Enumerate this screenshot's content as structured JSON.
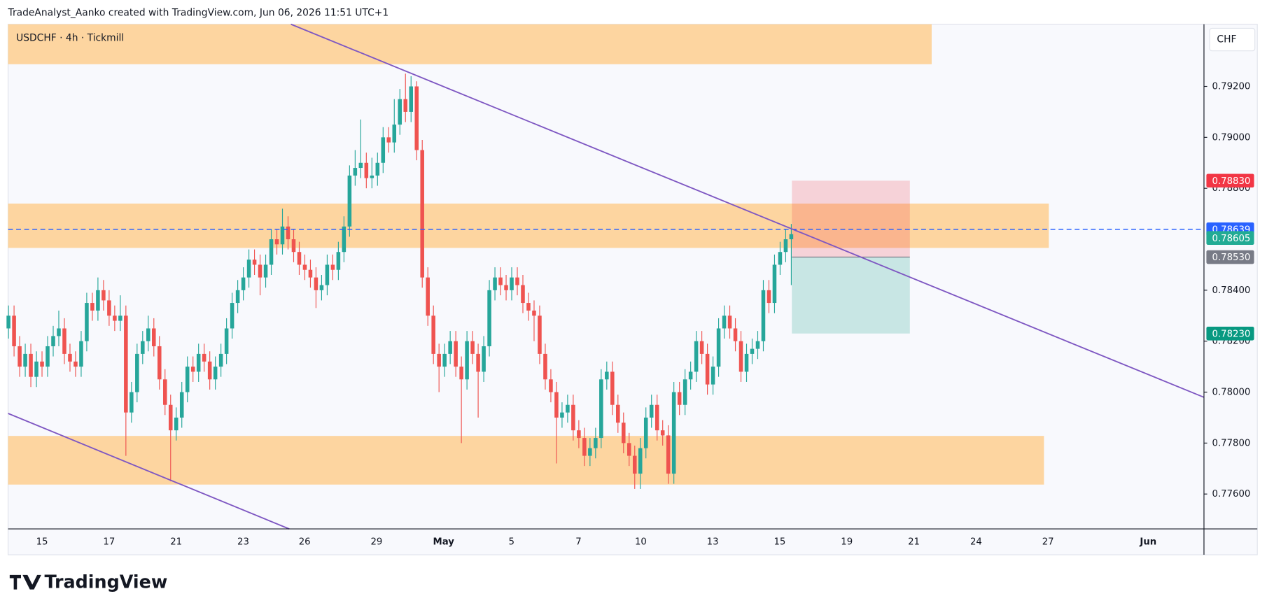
{
  "chart_data": {
    "type": "candlestick",
    "attribution": "TradeAnalyst_Aanko created with TradingView.com, Jun 06, 2026 11:51 UTC+1",
    "title": "USDCHF · 4h · Tickmill",
    "currency": "CHF",
    "brand": "TradingView",
    "up_color": "#26a69a",
    "down_color": "#ef5350",
    "ylim": [
      0.77463,
      0.79444
    ],
    "yticks": [
      {
        "value": 0.792,
        "label": "0.79200"
      },
      {
        "value": 0.79,
        "label": "0.79000"
      },
      {
        "value": 0.788,
        "label": "0.78800"
      },
      {
        "value": 0.784,
        "label": "0.78400"
      },
      {
        "value": 0.782,
        "label": "0.78200"
      },
      {
        "value": 0.78,
        "label": "0.78000"
      },
      {
        "value": 0.778,
        "label": "0.77800"
      },
      {
        "value": 0.776,
        "label": "0.77600"
      }
    ],
    "xtick_labels": [
      "15",
      "17",
      "21",
      "23",
      "26",
      "29",
      "May",
      "5",
      "7",
      "10",
      "13",
      "15",
      "19",
      "21",
      "24",
      "27",
      "Jun"
    ],
    "series": {
      "open": [
        0.7825,
        0.783,
        0.7818,
        0.781,
        0.7815,
        0.7806,
        0.7812,
        0.781,
        0.7818,
        0.7822,
        0.7825,
        0.7815,
        0.7812,
        0.781,
        0.782,
        0.7835,
        0.7832,
        0.784,
        0.7836,
        0.783,
        0.7828,
        0.783,
        0.7792,
        0.78,
        0.7815,
        0.782,
        0.7825,
        0.7818,
        0.7805,
        0.7795,
        0.7785,
        0.779,
        0.78,
        0.781,
        0.7808,
        0.7815,
        0.7812,
        0.7805,
        0.781,
        0.7815,
        0.7825,
        0.7835,
        0.784,
        0.7845,
        0.7852,
        0.785,
        0.7845,
        0.785,
        0.786,
        0.7858,
        0.7865,
        0.786,
        0.7855,
        0.785,
        0.7848,
        0.7845,
        0.784,
        0.7842,
        0.785,
        0.7848,
        0.7855,
        0.7865,
        0.7885,
        0.7888,
        0.789,
        0.7884,
        0.7885,
        0.789,
        0.79,
        0.7898,
        0.7905,
        0.7915,
        0.791,
        0.792,
        0.7895,
        0.7845,
        0.783,
        0.7815,
        0.781,
        0.7815,
        0.782,
        0.781,
        0.7805,
        0.782,
        0.7815,
        0.7808,
        0.7818,
        0.784,
        0.7845,
        0.7842,
        0.784,
        0.7845,
        0.7842,
        0.7835,
        0.7832,
        0.783,
        0.7815,
        0.7805,
        0.78,
        0.779,
        0.7792,
        0.7795,
        0.7785,
        0.7782,
        0.7775,
        0.7778,
        0.7782,
        0.7805,
        0.7808,
        0.7795,
        0.7788,
        0.778,
        0.7775,
        0.7768,
        0.7778,
        0.779,
        0.7795,
        0.7785,
        0.7783,
        0.7768,
        0.78,
        0.7795,
        0.7805,
        0.7808,
        0.782,
        0.7815,
        0.7803,
        0.781,
        0.7825,
        0.783,
        0.7825,
        0.782,
        0.7808,
        0.7815,
        0.7817,
        0.782,
        0.784,
        0.7835,
        0.785,
        0.7855,
        0.786
      ],
      "high": [
        0.7834,
        0.7834,
        0.7822,
        0.7819,
        0.7819,
        0.7816,
        0.7816,
        0.7822,
        0.7826,
        0.7832,
        0.7829,
        0.7819,
        0.7816,
        0.7824,
        0.7839,
        0.7839,
        0.7845,
        0.7844,
        0.784,
        0.7834,
        0.7838,
        0.7834,
        0.7804,
        0.7819,
        0.7824,
        0.783,
        0.7829,
        0.7822,
        0.7809,
        0.7799,
        0.7794,
        0.7804,
        0.7814,
        0.7814,
        0.7819,
        0.7819,
        0.7816,
        0.7814,
        0.7819,
        0.7829,
        0.7839,
        0.7844,
        0.7849,
        0.7856,
        0.7856,
        0.7854,
        0.7854,
        0.7864,
        0.7864,
        0.7872,
        0.7869,
        0.7864,
        0.7859,
        0.7854,
        0.7852,
        0.7849,
        0.7846,
        0.7854,
        0.7854,
        0.7859,
        0.7869,
        0.7889,
        0.7895,
        0.7907,
        0.7894,
        0.7892,
        0.7894,
        0.7904,
        0.7904,
        0.7915,
        0.7919,
        0.7925,
        0.7924,
        0.7922,
        0.7899,
        0.7849,
        0.7834,
        0.7819,
        0.7819,
        0.7824,
        0.7824,
        0.7814,
        0.7824,
        0.7824,
        0.7819,
        0.7822,
        0.7844,
        0.7849,
        0.7849,
        0.7846,
        0.7849,
        0.7849,
        0.7846,
        0.7839,
        0.7836,
        0.7834,
        0.7819,
        0.7809,
        0.7804,
        0.7796,
        0.7799,
        0.7799,
        0.7789,
        0.7786,
        0.7782,
        0.7786,
        0.7809,
        0.7812,
        0.7812,
        0.7799,
        0.7792,
        0.7784,
        0.7779,
        0.7782,
        0.7794,
        0.7799,
        0.7799,
        0.7789,
        0.7787,
        0.7804,
        0.7804,
        0.7809,
        0.7812,
        0.7824,
        0.7824,
        0.7819,
        0.7814,
        0.7829,
        0.7834,
        0.7834,
        0.7829,
        0.7824,
        0.7819,
        0.7821,
        0.7824,
        0.7844,
        0.7844,
        0.7854,
        0.7859,
        0.7864,
        0.7866
      ],
      "low": [
        0.7821,
        0.7814,
        0.7806,
        0.7806,
        0.7802,
        0.7802,
        0.7806,
        0.7806,
        0.7814,
        0.7818,
        0.7811,
        0.7808,
        0.7806,
        0.7806,
        0.7816,
        0.7828,
        0.7828,
        0.7832,
        0.7826,
        0.7824,
        0.7824,
        0.7775,
        0.7788,
        0.7796,
        0.7811,
        0.7816,
        0.7814,
        0.7801,
        0.7791,
        0.7765,
        0.7781,
        0.7786,
        0.7796,
        0.7804,
        0.7804,
        0.7808,
        0.7801,
        0.7801,
        0.7806,
        0.7811,
        0.7821,
        0.7831,
        0.7836,
        0.7841,
        0.7846,
        0.7838,
        0.7841,
        0.7846,
        0.7854,
        0.7854,
        0.7856,
        0.7851,
        0.7846,
        0.7844,
        0.7841,
        0.7833,
        0.7836,
        0.7838,
        0.7844,
        0.7844,
        0.7851,
        0.7861,
        0.7881,
        0.7884,
        0.788,
        0.788,
        0.7881,
        0.7886,
        0.7894,
        0.7894,
        0.7901,
        0.7906,
        0.7906,
        0.7891,
        0.7841,
        0.7826,
        0.7811,
        0.78,
        0.7806,
        0.7811,
        0.7806,
        0.778,
        0.7801,
        0.7811,
        0.779,
        0.7804,
        0.7814,
        0.7836,
        0.7838,
        0.7836,
        0.7836,
        0.7838,
        0.7831,
        0.7828,
        0.782,
        0.7811,
        0.7801,
        0.7796,
        0.7772,
        0.7786,
        0.7788,
        0.7781,
        0.7778,
        0.7771,
        0.7771,
        0.7774,
        0.7778,
        0.7801,
        0.7791,
        0.7784,
        0.7776,
        0.7771,
        0.7762,
        0.7762,
        0.7774,
        0.7786,
        0.7781,
        0.7779,
        0.7764,
        0.7764,
        0.7791,
        0.7791,
        0.7801,
        0.7804,
        0.7811,
        0.7799,
        0.7799,
        0.7806,
        0.7821,
        0.7821,
        0.7816,
        0.7804,
        0.7804,
        0.7811,
        0.7813,
        0.7816,
        0.7831,
        0.7831,
        0.7846,
        0.7851,
        0.7842
      ],
      "close": [
        0.783,
        0.7818,
        0.781,
        0.7815,
        0.7806,
        0.7812,
        0.781,
        0.7818,
        0.7822,
        0.7825,
        0.7815,
        0.7812,
        0.781,
        0.782,
        0.7835,
        0.7832,
        0.784,
        0.7836,
        0.783,
        0.7828,
        0.783,
        0.7792,
        0.78,
        0.7815,
        0.782,
        0.7825,
        0.7818,
        0.7805,
        0.7795,
        0.7785,
        0.779,
        0.78,
        0.781,
        0.7808,
        0.7815,
        0.7812,
        0.7805,
        0.781,
        0.7815,
        0.7825,
        0.7835,
        0.784,
        0.7845,
        0.7852,
        0.785,
        0.7845,
        0.785,
        0.786,
        0.7858,
        0.7865,
        0.786,
        0.7855,
        0.785,
        0.7848,
        0.7845,
        0.784,
        0.7842,
        0.785,
        0.7848,
        0.7855,
        0.7865,
        0.7885,
        0.7888,
        0.789,
        0.7884,
        0.7885,
        0.789,
        0.79,
        0.7898,
        0.7905,
        0.7915,
        0.791,
        0.792,
        0.7895,
        0.7845,
        0.783,
        0.7815,
        0.781,
        0.7815,
        0.782,
        0.781,
        0.7805,
        0.782,
        0.7815,
        0.7808,
        0.7818,
        0.784,
        0.7845,
        0.7842,
        0.784,
        0.7845,
        0.7842,
        0.7835,
        0.7832,
        0.783,
        0.7815,
        0.7805,
        0.78,
        0.779,
        0.7792,
        0.7795,
        0.7785,
        0.7782,
        0.7775,
        0.7778,
        0.7782,
        0.7805,
        0.7808,
        0.7795,
        0.7788,
        0.778,
        0.7775,
        0.7768,
        0.7778,
        0.779,
        0.7795,
        0.7785,
        0.7783,
        0.7768,
        0.78,
        0.7795,
        0.7805,
        0.7808,
        0.782,
        0.7815,
        0.7803,
        0.781,
        0.7825,
        0.783,
        0.7825,
        0.782,
        0.7808,
        0.7815,
        0.7817,
        0.782,
        0.784,
        0.7835,
        0.785,
        0.7855,
        0.786,
        0.7862
      ]
    },
    "zones": [
      {
        "from": 0.79287,
        "to": 0.79444
      },
      {
        "from": 0.78566,
        "to": 0.7874
      },
      {
        "from": 0.77637,
        "to": 0.77828
      }
    ],
    "zone_color": "#fdd39b",
    "trendline_color": "#7e57c2",
    "price_labels": [
      {
        "value": 0.7883,
        "label": "0.78830",
        "color": "#f23645"
      },
      {
        "value": 0.78639,
        "label": "0.78639",
        "color": "#2962ff"
      },
      {
        "value": 0.78605,
        "label": "0.78605",
        "color": "#22ab94"
      },
      {
        "value": 0.7853,
        "label": "0.78530",
        "color": "#787b86"
      },
      {
        "value": 0.7823,
        "label": "0.78230",
        "color": "#089981"
      }
    ]
  }
}
